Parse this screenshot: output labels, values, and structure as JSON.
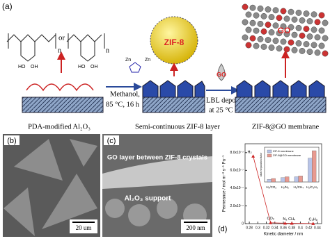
{
  "panel_a": {
    "label": "(a)",
    "or": "or",
    "n1": "n",
    "n2": "n",
    "structure_labels": [
      "HO",
      "OH",
      "HO",
      "OH"
    ],
    "zn1": "Zn",
    "zn2": "Zn",
    "method_line1": "Methanol,",
    "method_line2": "85 °C, 16 h",
    "drop_label": "GO",
    "lbl_line1": "LBL  deposition",
    "lbl_line2": "at 25 °C",
    "sphere_label": "ZIF-8",
    "membrane_label": "GO",
    "captions": [
      "PDA-modified Al₂O₃",
      "Semi-continuous ZIF-8 layer",
      "ZIF-8@GO membrane"
    ]
  },
  "panel_b": {
    "label": "(b)",
    "scale": "20 um"
  },
  "panel_c": {
    "label": "(c)",
    "annotation": "GO layer between ZIF-8 crystals",
    "support": "Al₂O₃ support",
    "scale": "200 nm"
  },
  "chart_data": {
    "type": "line",
    "label": "(d)",
    "y_label": "Permeance / mol m⁻² s⁻¹ Pa⁻¹",
    "x_label": "Kinetic diameter / nm",
    "x": [
      0.289,
      0.33,
      0.364,
      0.38,
      0.43
    ],
    "point_labels": [
      "H₂",
      "CO₂",
      "N₂",
      "CH₄",
      "C₃H₈"
    ],
    "series": [
      {
        "name": "Permeance",
        "color": "#cc2222",
        "values": [
          7.6e-07,
          1e-08,
          5e-09,
          4e-09,
          1e-09
        ]
      }
    ],
    "xlim": [
      0.27,
      0.45
    ],
    "xticks": [
      0.28,
      0.3,
      0.32,
      0.34,
      0.36,
      0.38,
      0.4,
      0.42,
      0.44
    ],
    "ylim": [
      0,
      9e-07
    ],
    "yticks": [
      0,
      {
        "value": 2e-07,
        "label": "2.0x10⁻⁷"
      },
      {
        "value": 4e-07,
        "label": "4.0x10⁻⁷"
      },
      {
        "value": 6e-07,
        "label": "6.0x10⁻⁷"
      },
      {
        "value": 8e-07,
        "label": "8.0x10⁻⁷"
      }
    ],
    "inset": {
      "type": "bar",
      "y_label": "Ideal separation factor",
      "categories": [
        "H₂/CO₂",
        "H₂/N₂",
        "H₂/CH₄",
        "H₂/C₃H₈"
      ],
      "ylim": [
        0,
        80
      ],
      "series": [
        {
          "name": "ZIF-8 membrane",
          "color": "#b8c4e8",
          "values": [
            6,
            10,
            12,
            55
          ]
        },
        {
          "name": "ZIF-8@GO membrane",
          "color": "#e89a90",
          "values": [
            8,
            12,
            14,
            72
          ]
        }
      ]
    }
  }
}
